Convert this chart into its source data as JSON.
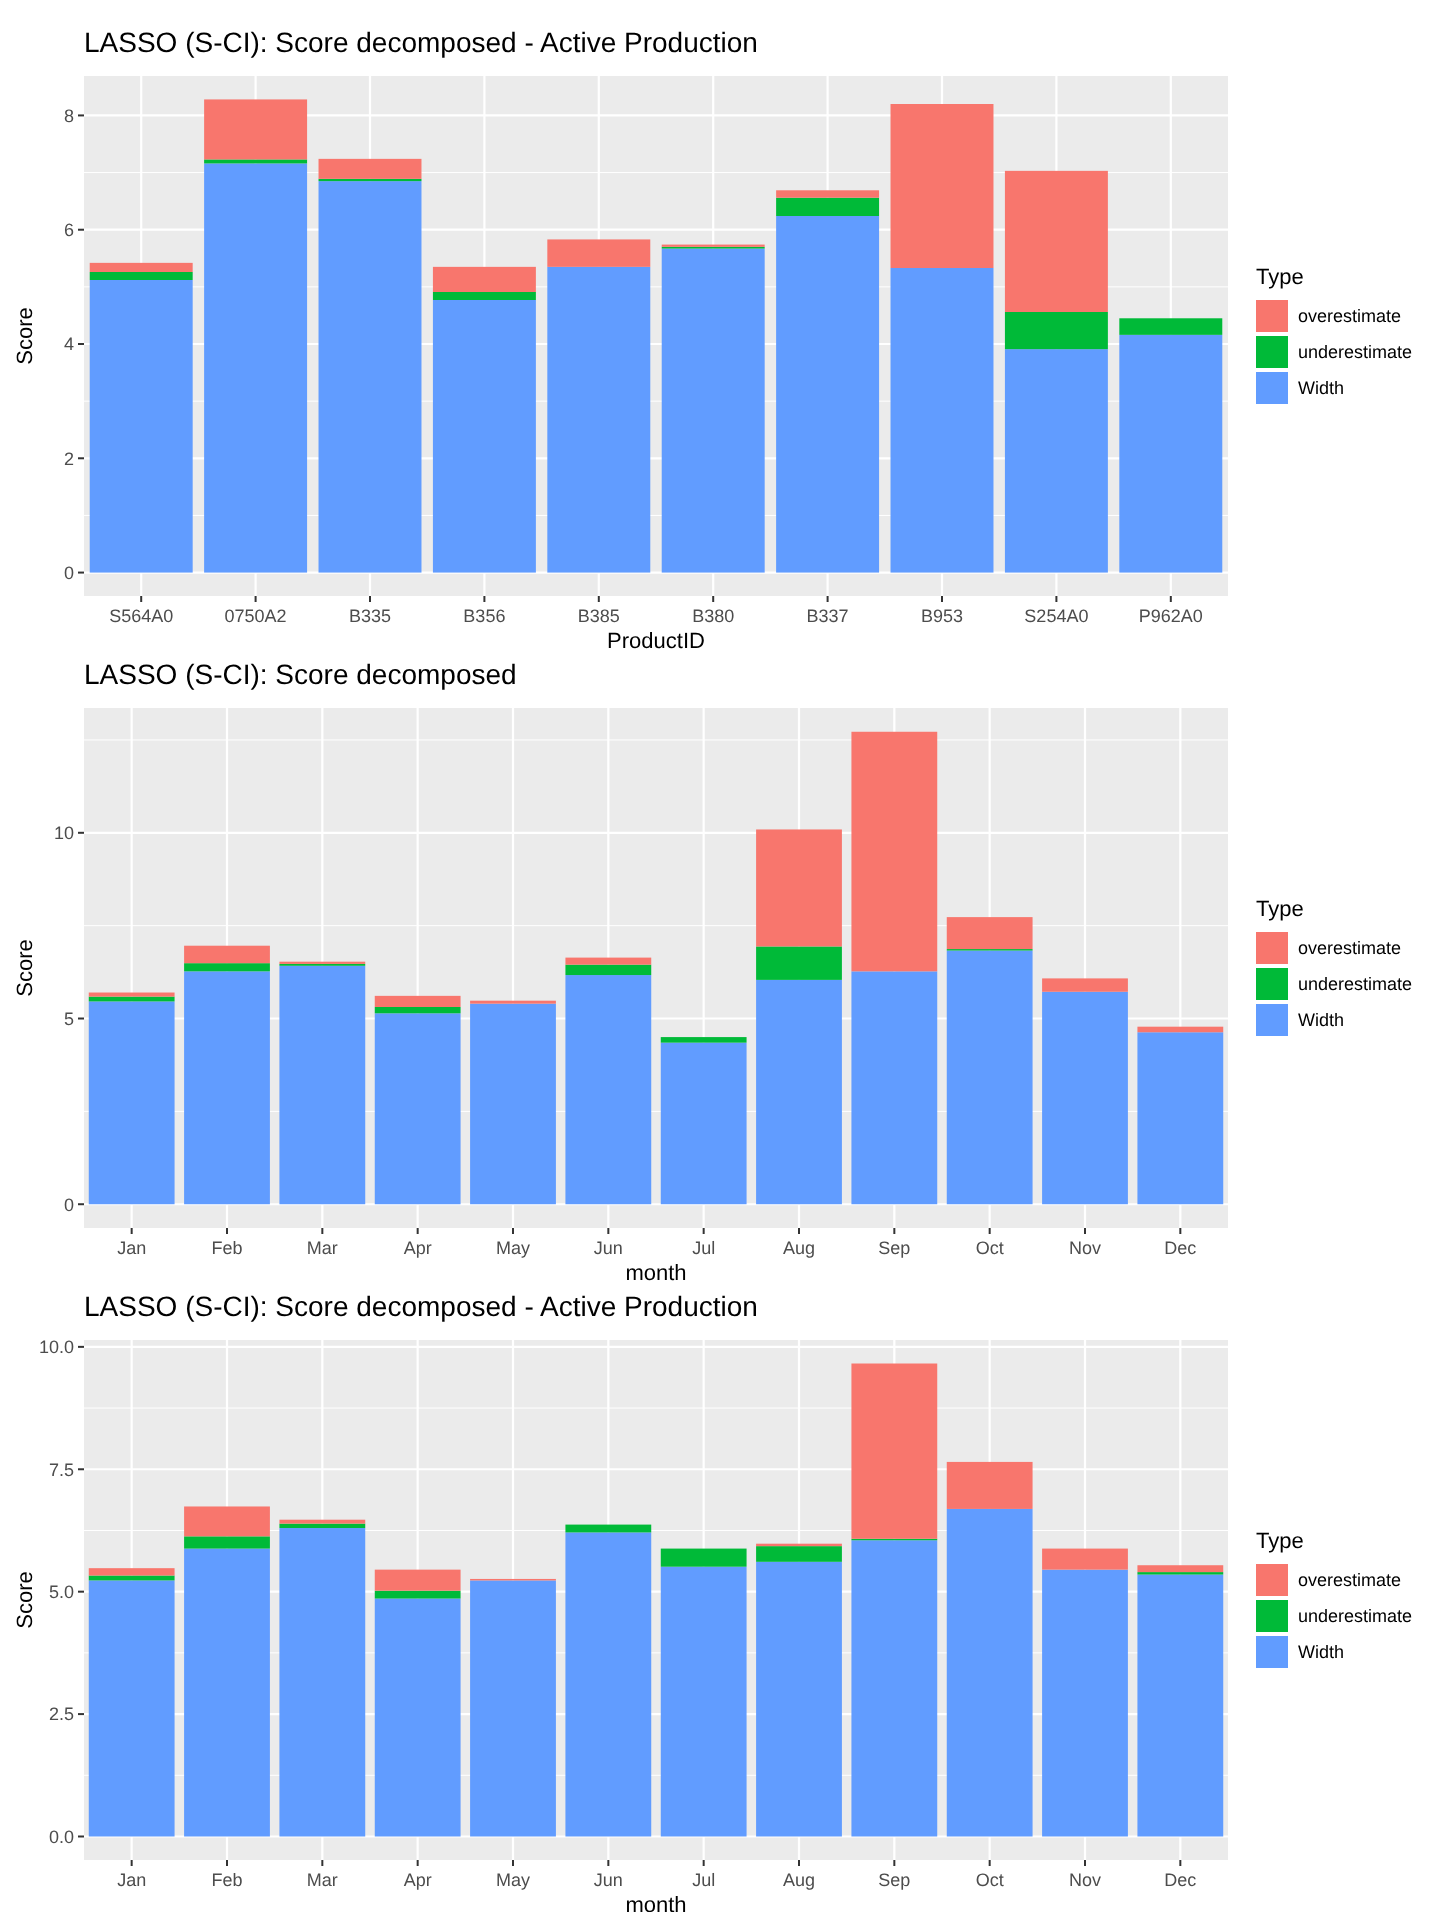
{
  "chart_data": [
    {
      "type": "bar",
      "stacked": true,
      "title": "LASSO (S-CI): Score decomposed - Active Production",
      "xlabel": "ProductID",
      "ylabel": "Score",
      "legend_title": "Type",
      "legend": "right",
      "grid": true,
      "categories": [
        "S564A0",
        "0750A2",
        "B335",
        "B356",
        "B385",
        "B380",
        "B337",
        "B953",
        "S254A0",
        "P962A0"
      ],
      "ylim": [
        -0.41,
        8.69
      ],
      "yticks": [
        0,
        2,
        4,
        6,
        8
      ],
      "series": [
        {
          "name": "Width",
          "color": "#619cff",
          "values": [
            5.12,
            7.16,
            6.85,
            4.77,
            5.35,
            5.67,
            6.24,
            5.33,
            3.91,
            4.16
          ]
        },
        {
          "name": "underestimate",
          "color": "#00ba38",
          "values": [
            0.14,
            0.07,
            0.04,
            0.14,
            0,
            0.03,
            0.32,
            0,
            0.65,
            0.29
          ]
        },
        {
          "name": "overestimate",
          "color": "#f8766d",
          "values": [
            0.16,
            1.05,
            0.35,
            0.44,
            0.48,
            0.04,
            0.13,
            2.87,
            2.47,
            0
          ]
        }
      ]
    },
    {
      "type": "bar",
      "stacked": true,
      "title": "LASSO (S-CI): Score decomposed",
      "xlabel": "month",
      "ylabel": "Score",
      "legend_title": "Type",
      "legend": "right",
      "grid": true,
      "categories": [
        "Jan",
        "Feb",
        "Mar",
        "Apr",
        "May",
        "Jun",
        "Jul",
        "Aug",
        "Sep",
        "Oct",
        "Nov",
        "Dec"
      ],
      "ylim": [
        -0.64,
        13.36
      ],
      "yticks": [
        0,
        5,
        10
      ],
      "series": [
        {
          "name": "Width",
          "color": "#619cff",
          "values": [
            5.46,
            6.27,
            6.42,
            5.14,
            5.4,
            6.17,
            4.35,
            6.04,
            6.27,
            6.83,
            5.72,
            4.63
          ]
        },
        {
          "name": "underestimate",
          "color": "#00ba38",
          "values": [
            0.13,
            0.22,
            0.05,
            0.17,
            0,
            0.28,
            0.15,
            0.9,
            0,
            0.04,
            0,
            0
          ]
        },
        {
          "name": "overestimate",
          "color": "#f8766d",
          "values": [
            0.11,
            0.47,
            0.06,
            0.3,
            0.08,
            0.19,
            0,
            3.15,
            6.45,
            0.86,
            0.36,
            0.15
          ]
        }
      ]
    },
    {
      "type": "bar",
      "stacked": true,
      "title": "LASSO (S-CI): Score decomposed - Active Production",
      "xlabel": "month",
      "ylabel": "Score",
      "legend_title": "Type",
      "legend": "right",
      "grid": true,
      "categories": [
        "Jan",
        "Feb",
        "Mar",
        "Apr",
        "May",
        "Jun",
        "Jul",
        "Aug",
        "Sep",
        "Oct",
        "Nov",
        "Dec"
      ],
      "ylim": [
        -0.48,
        10.14
      ],
      "yticks": [
        {
          "value": 0,
          "label": "0.0"
        },
        {
          "value": 2.5,
          "label": "2.5"
        },
        {
          "value": 5,
          "label": "5.0"
        },
        {
          "value": 7.5,
          "label": "7.5"
        },
        {
          "value": 10,
          "label": "10.0"
        }
      ],
      "series": [
        {
          "name": "Width",
          "color": "#619cff",
          "values": [
            5.23,
            5.88,
            6.3,
            4.86,
            5.23,
            6.21,
            5.51,
            5.61,
            6.05,
            6.69,
            5.45,
            5.35
          ]
        },
        {
          "name": "underestimate",
          "color": "#00ba38",
          "values": [
            0.1,
            0.25,
            0.09,
            0.16,
            null,
            0.16,
            0.37,
            0.32,
            0.03,
            0,
            0,
            0.05
          ]
        },
        {
          "name": "overestimate",
          "color": "#f8766d",
          "values": [
            0.15,
            0.61,
            0.08,
            0.43,
            0.03,
            0,
            0,
            0.05,
            3.58,
            0.96,
            0.43,
            0.14
          ]
        }
      ]
    }
  ]
}
